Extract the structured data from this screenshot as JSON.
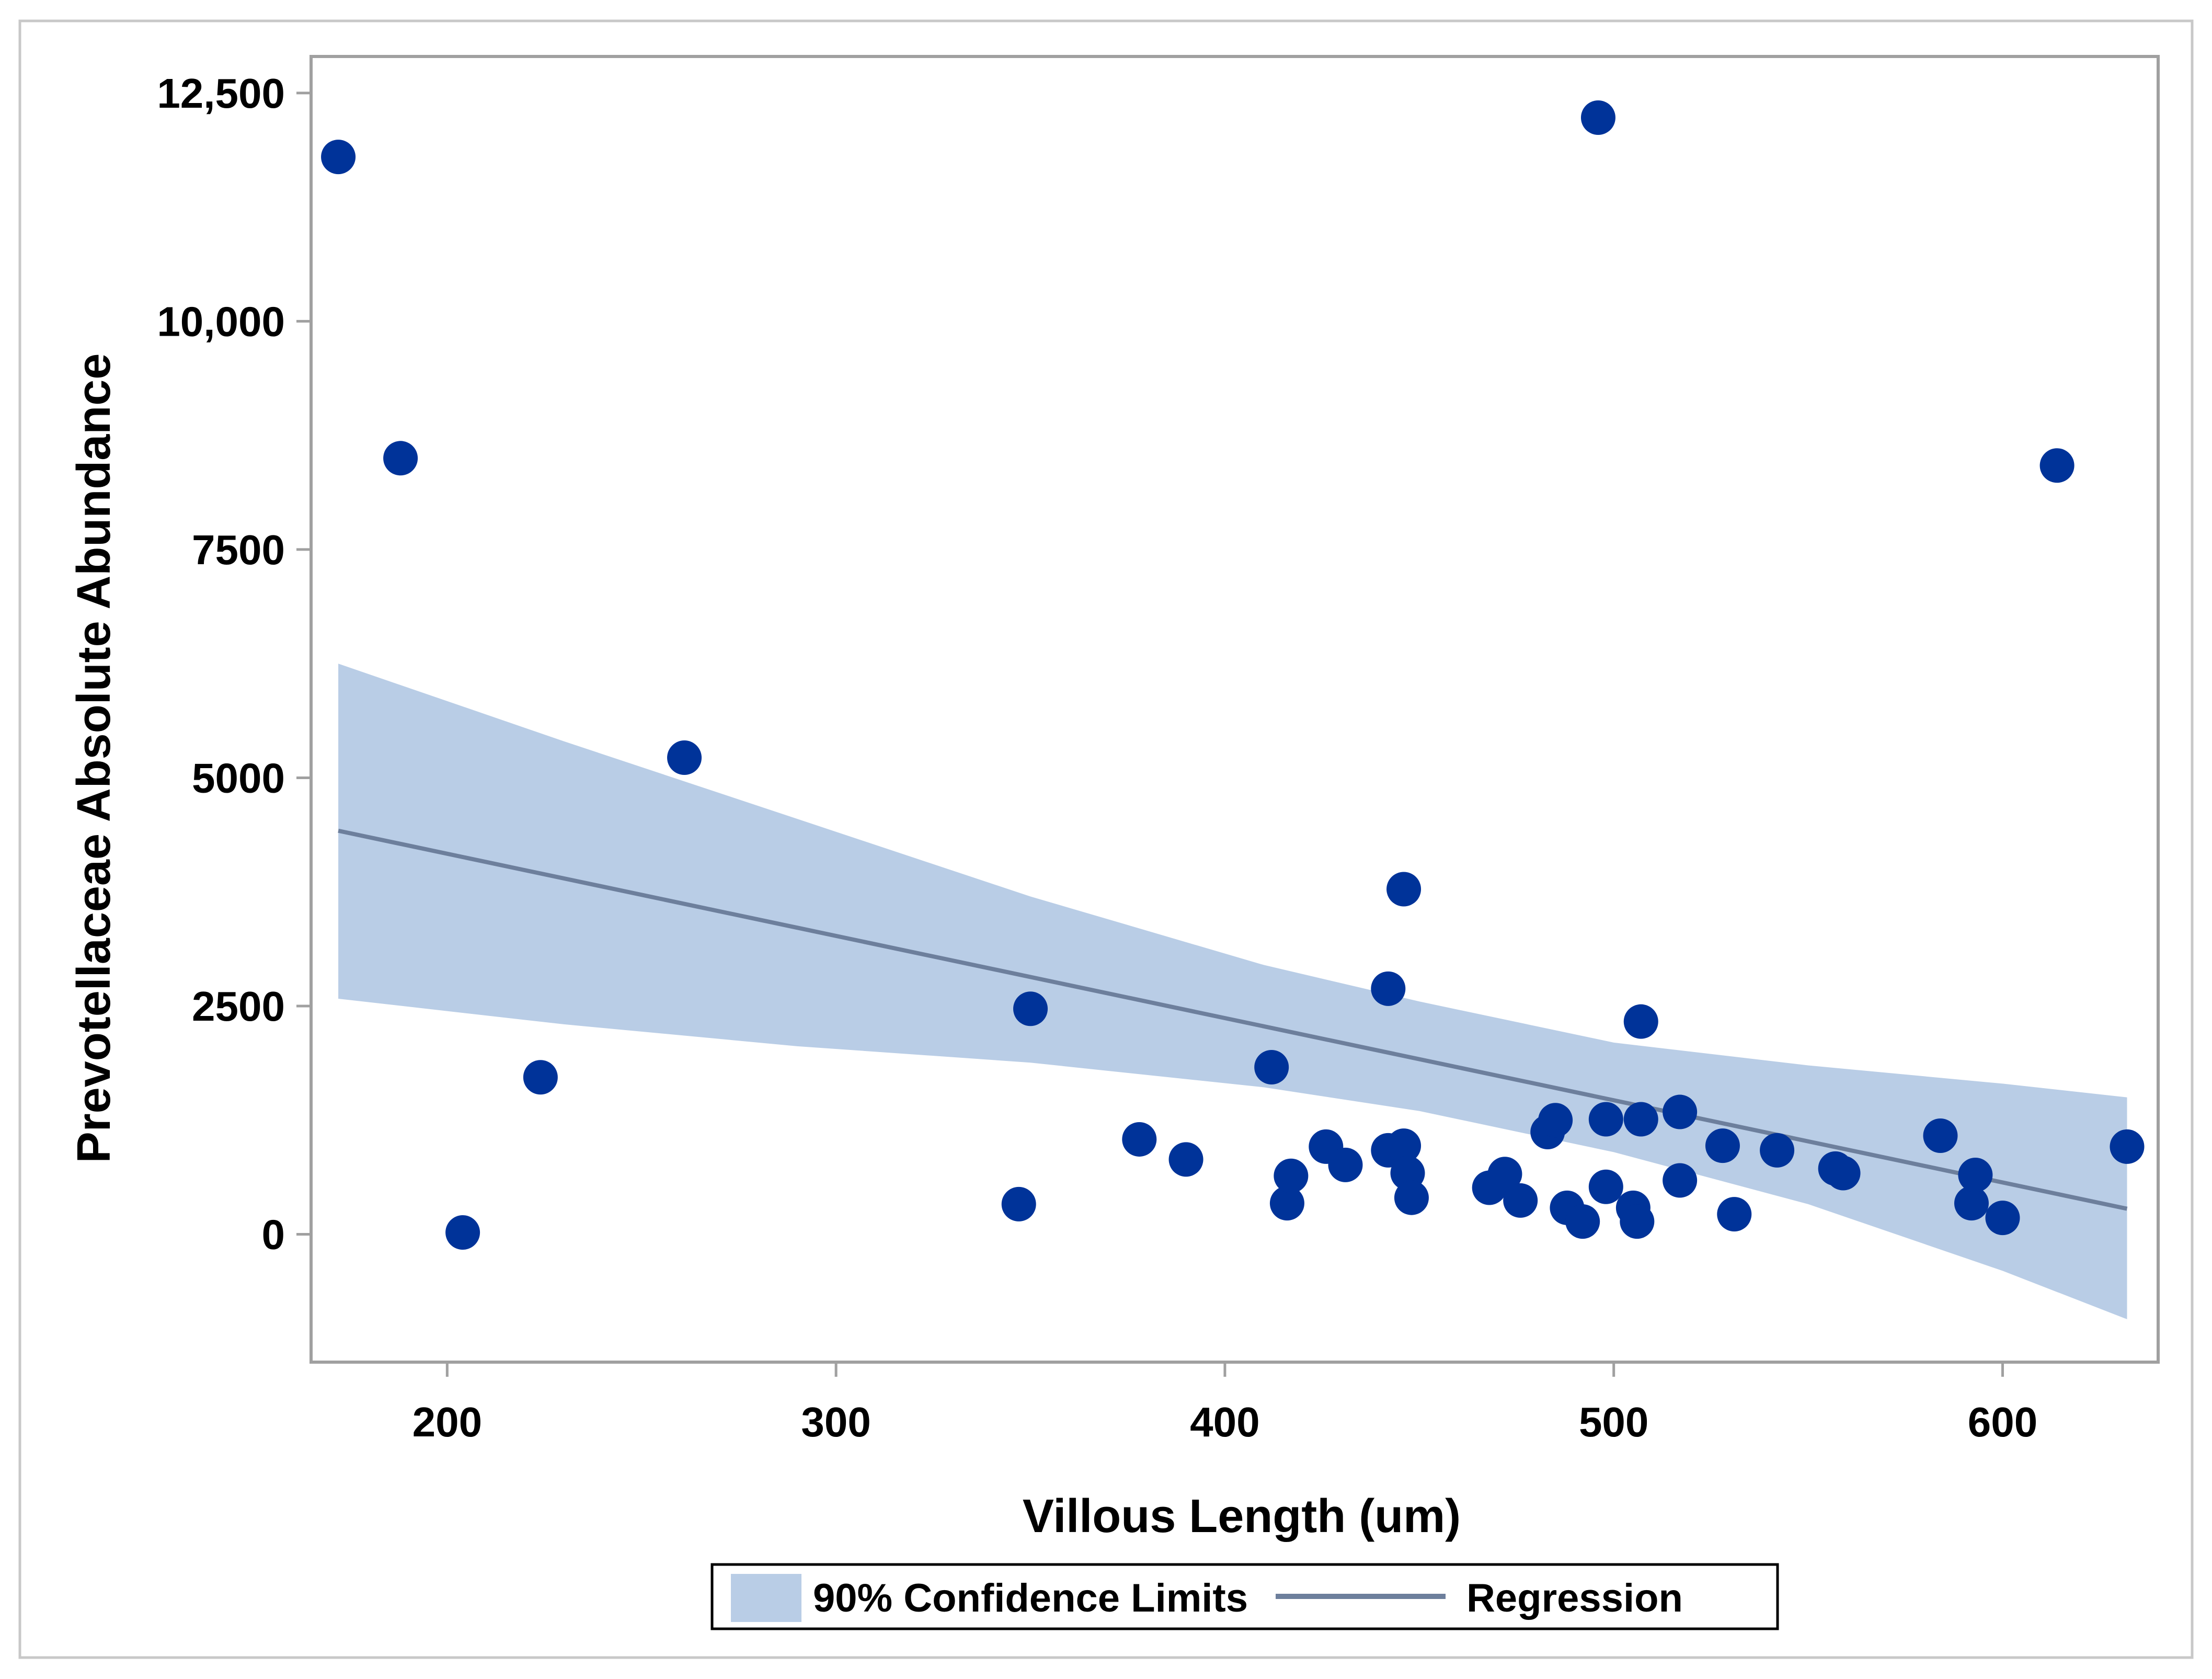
{
  "chart_data": {
    "type": "scatter",
    "xlabel": "Villous Length (um)",
    "ylabel": "Prevotellaceae Absolute Abundance",
    "xlim": [
      165,
      640
    ],
    "ylim": [
      -1400,
      12900
    ],
    "x_ticks": [
      200,
      300,
      400,
      500,
      600
    ],
    "x_tick_labels": [
      "200",
      "300",
      "400",
      "500",
      "600"
    ],
    "y_ticks": [
      0,
      2500,
      5000,
      7500,
      10000,
      12500
    ],
    "y_tick_labels": [
      "0",
      "2500",
      "5000",
      "7500",
      "10,000",
      "12,500"
    ],
    "grid": false,
    "legend_position": "bottom",
    "legend": [
      {
        "label": "90% Confidence Limits",
        "kind": "band"
      },
      {
        "label": "Regression",
        "kind": "line"
      }
    ],
    "colors": {
      "points": "#003399",
      "band": "#b9cde6",
      "regression": "#6d7f9c",
      "frame": "#a0a0a0"
    },
    "points": [
      {
        "x": 172,
        "y": 11800
      },
      {
        "x": 188,
        "y": 8500
      },
      {
        "x": 204,
        "y": 20
      },
      {
        "x": 224,
        "y": 1720
      },
      {
        "x": 261,
        "y": 5220
      },
      {
        "x": 347,
        "y": 330
      },
      {
        "x": 350,
        "y": 2470
      },
      {
        "x": 378,
        "y": 1040
      },
      {
        "x": 390,
        "y": 820
      },
      {
        "x": 412,
        "y": 1830
      },
      {
        "x": 416,
        "y": 340
      },
      {
        "x": 417,
        "y": 640
      },
      {
        "x": 426,
        "y": 960
      },
      {
        "x": 431,
        "y": 760
      },
      {
        "x": 442,
        "y": 2690
      },
      {
        "x": 442,
        "y": 920
      },
      {
        "x": 446,
        "y": 970
      },
      {
        "x": 446,
        "y": 3780
      },
      {
        "x": 447,
        "y": 670
      },
      {
        "x": 448,
        "y": 400
      },
      {
        "x": 468,
        "y": 510
      },
      {
        "x": 472,
        "y": 660
      },
      {
        "x": 476,
        "y": 370
      },
      {
        "x": 483,
        "y": 1120
      },
      {
        "x": 485,
        "y": 1250
      },
      {
        "x": 488,
        "y": 290
      },
      {
        "x": 492,
        "y": 140
      },
      {
        "x": 496,
        "y": 12230
      },
      {
        "x": 498,
        "y": 1260
      },
      {
        "x": 498,
        "y": 520
      },
      {
        "x": 505,
        "y": 290
      },
      {
        "x": 506,
        "y": 140
      },
      {
        "x": 507,
        "y": 1260
      },
      {
        "x": 507,
        "y": 2330
      },
      {
        "x": 517,
        "y": 1340
      },
      {
        "x": 517,
        "y": 590
      },
      {
        "x": 528,
        "y": 970
      },
      {
        "x": 531,
        "y": 220
      },
      {
        "x": 542,
        "y": 920
      },
      {
        "x": 557,
        "y": 720
      },
      {
        "x": 559,
        "y": 670
      },
      {
        "x": 584,
        "y": 1080
      },
      {
        "x": 592,
        "y": 340
      },
      {
        "x": 593,
        "y": 650
      },
      {
        "x": 600,
        "y": 180
      },
      {
        "x": 614,
        "y": 8420
      },
      {
        "x": 632,
        "y": 960
      }
    ],
    "regression": {
      "x": [
        172,
        632
      ],
      "y": [
        4420,
        280
      ]
    },
    "confidence_band": {
      "x": [
        172,
        230,
        290,
        350,
        410,
        450,
        500,
        550,
        600,
        632
      ],
      "upper": [
        6250,
        5400,
        4550,
        3700,
        2950,
        2550,
        2100,
        1850,
        1650,
        1500
      ],
      "lower": [
        2580,
        2300,
        2060,
        1880,
        1610,
        1350,
        900,
        330,
        -400,
        -930
      ]
    }
  }
}
